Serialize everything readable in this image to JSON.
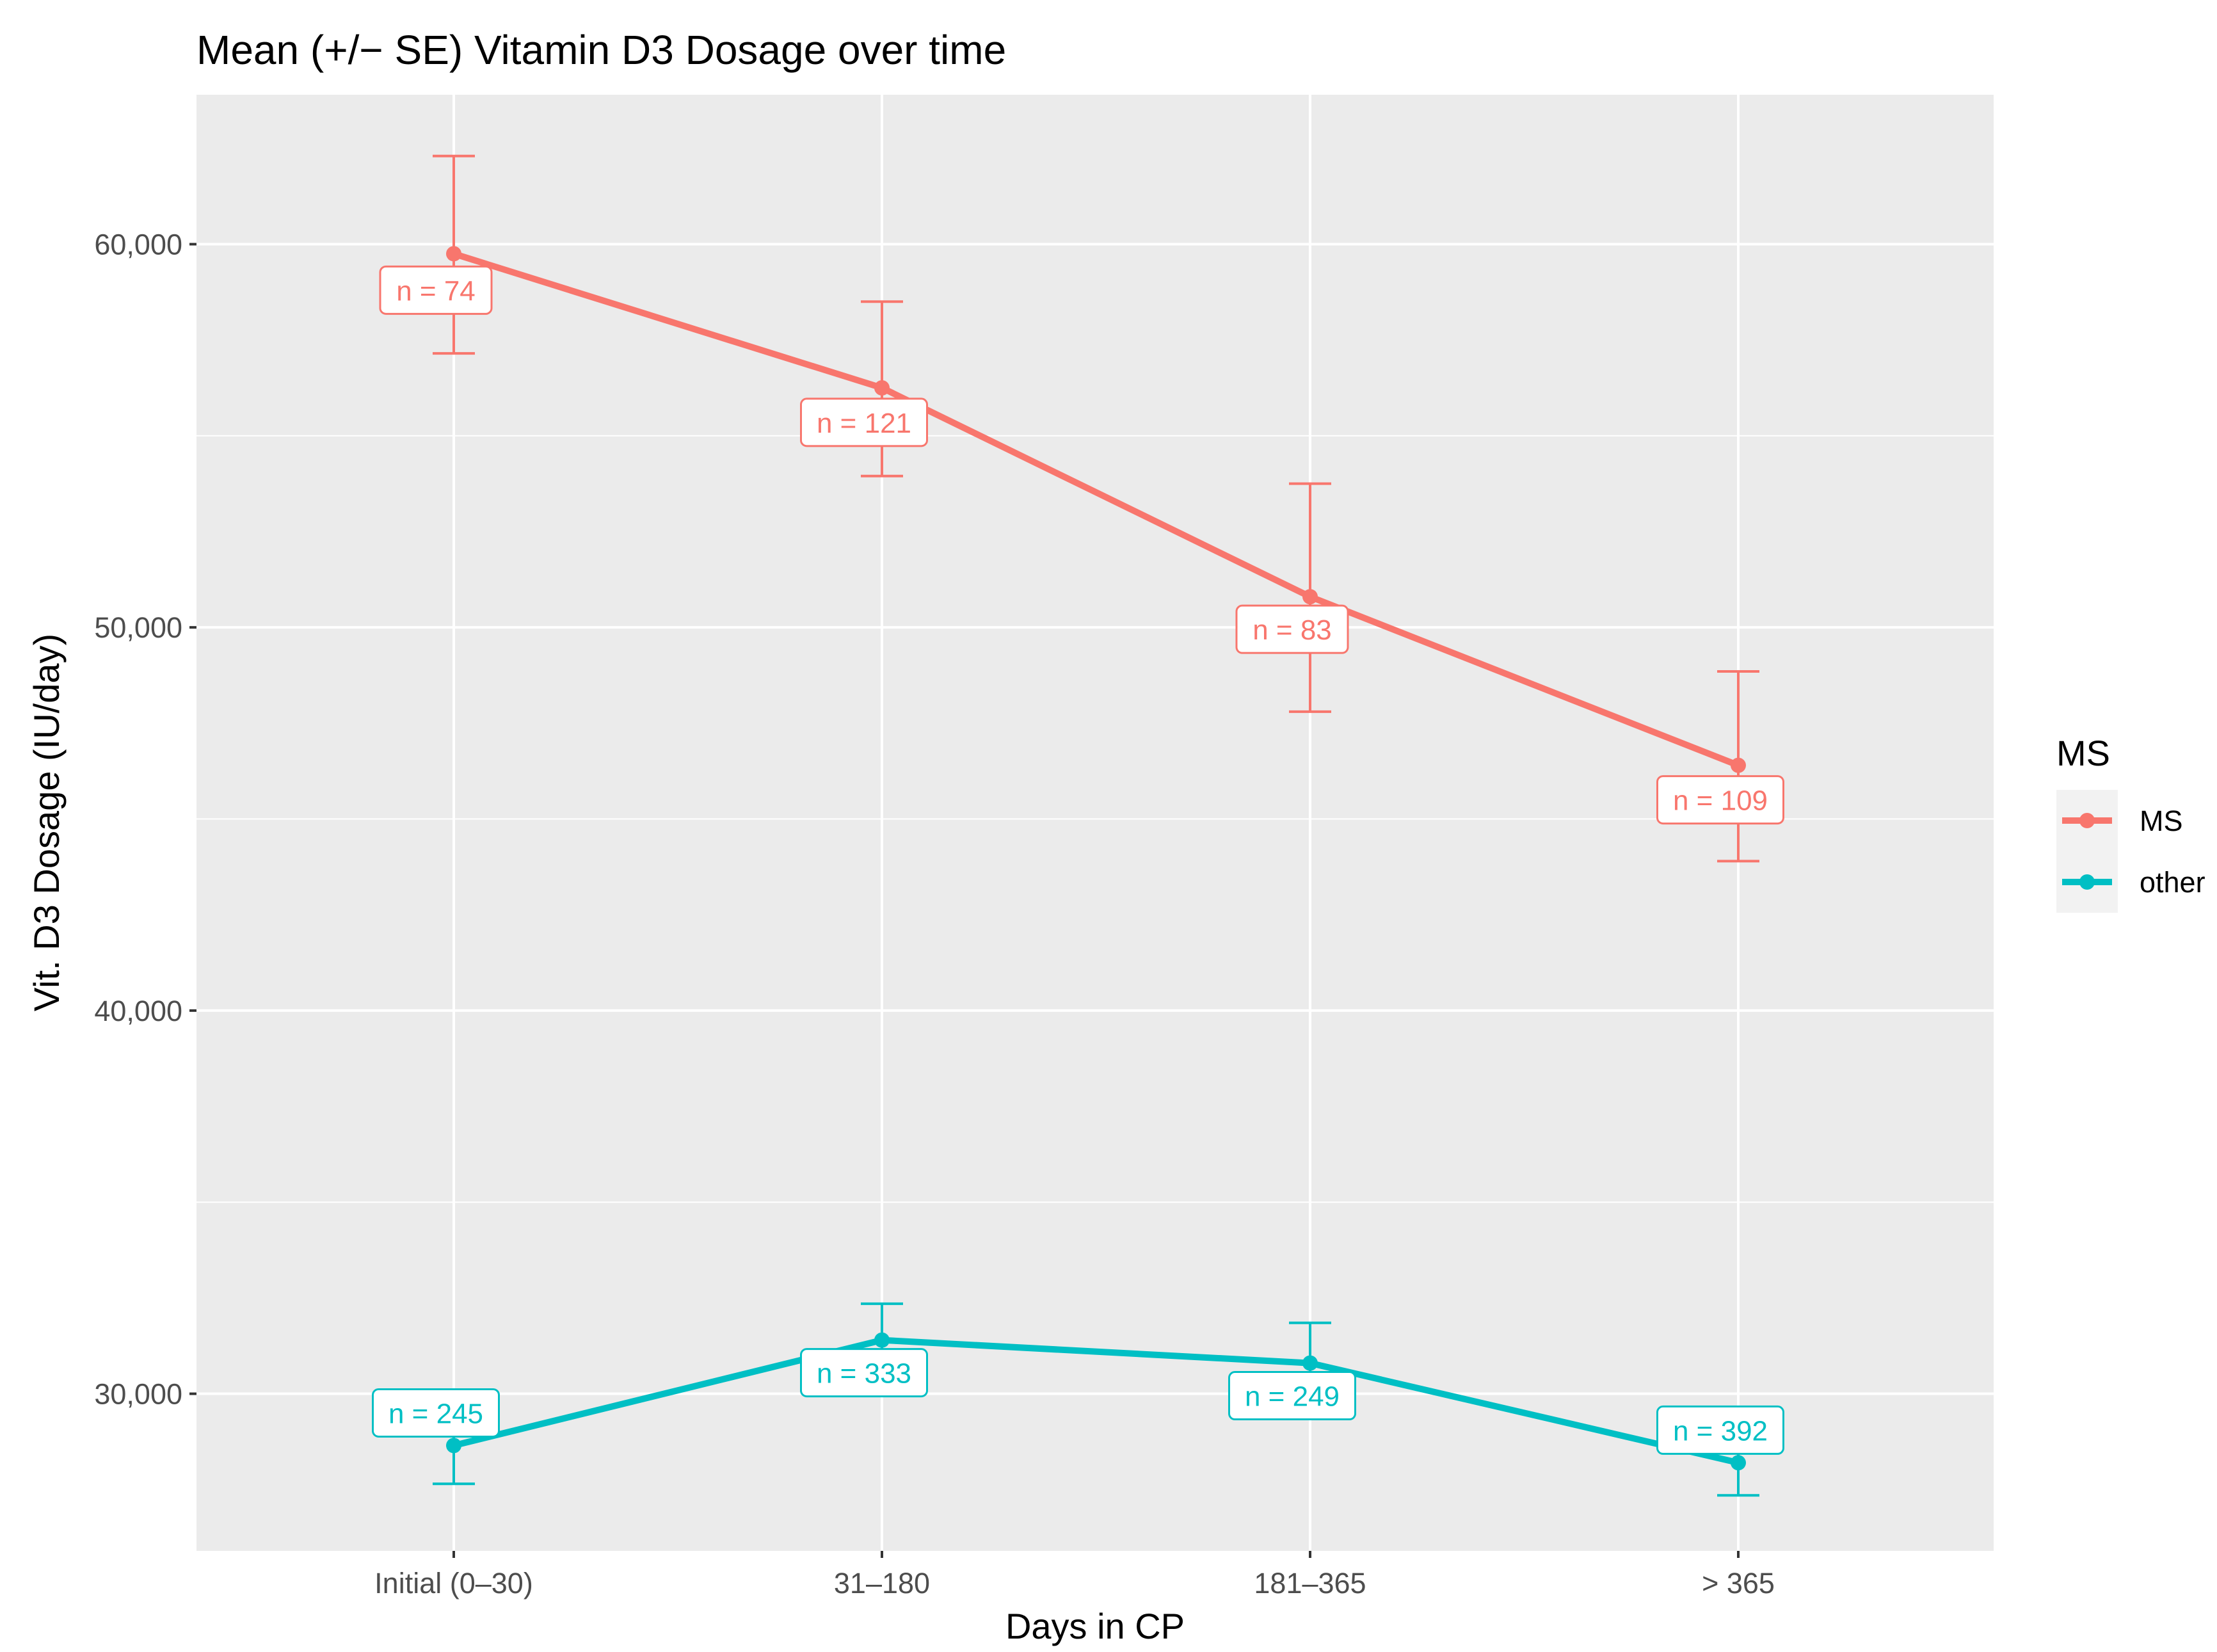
{
  "chart_data": {
    "type": "line",
    "title": "Mean (+/− SE) Vitamin D3 Dosage over time",
    "xlabel": "Days in CP",
    "ylabel": "Vit. D3 Dosage (IU/day)",
    "categories": [
      "Initial (0–30)",
      "31–180",
      "181–365",
      "> 365"
    ],
    "ylim": [
      25900,
      63900
    ],
    "y_ticks": [
      30000,
      40000,
      50000,
      60000
    ],
    "y_tick_labels": [
      "30,000",
      "40,000",
      "50,000",
      "60,000"
    ],
    "y_minor_ticks": [
      35000,
      45000,
      55000
    ],
    "grid": true,
    "legend": {
      "title": "MS",
      "placement": "right"
    },
    "series": [
      {
        "name": "MS",
        "color": "#F8766D",
        "values": [
          59750,
          56250,
          50800,
          46400
        ],
        "se_upper": [
          62300,
          58500,
          53750,
          48850
        ],
        "se_lower": [
          57150,
          53950,
          47800,
          43900
        ],
        "n_labels": [
          "n = 74",
          "n = 121",
          "n = 83",
          "n = 109"
        ],
        "label_values": [
          58800,
          55350,
          49950,
          45500
        ]
      },
      {
        "name": "other",
        "color": "#00BFC4",
        "values": [
          28650,
          31400,
          30800,
          28200
        ],
        "se_upper": [
          29700,
          32350,
          31850,
          29100
        ],
        "se_lower": [
          27650,
          30400,
          29800,
          27350
        ],
        "n_labels": [
          "n = 245",
          "n = 333",
          "n = 249",
          "n = 392"
        ],
        "label_values": [
          29500,
          30550,
          29950,
          29050
        ]
      }
    ]
  }
}
